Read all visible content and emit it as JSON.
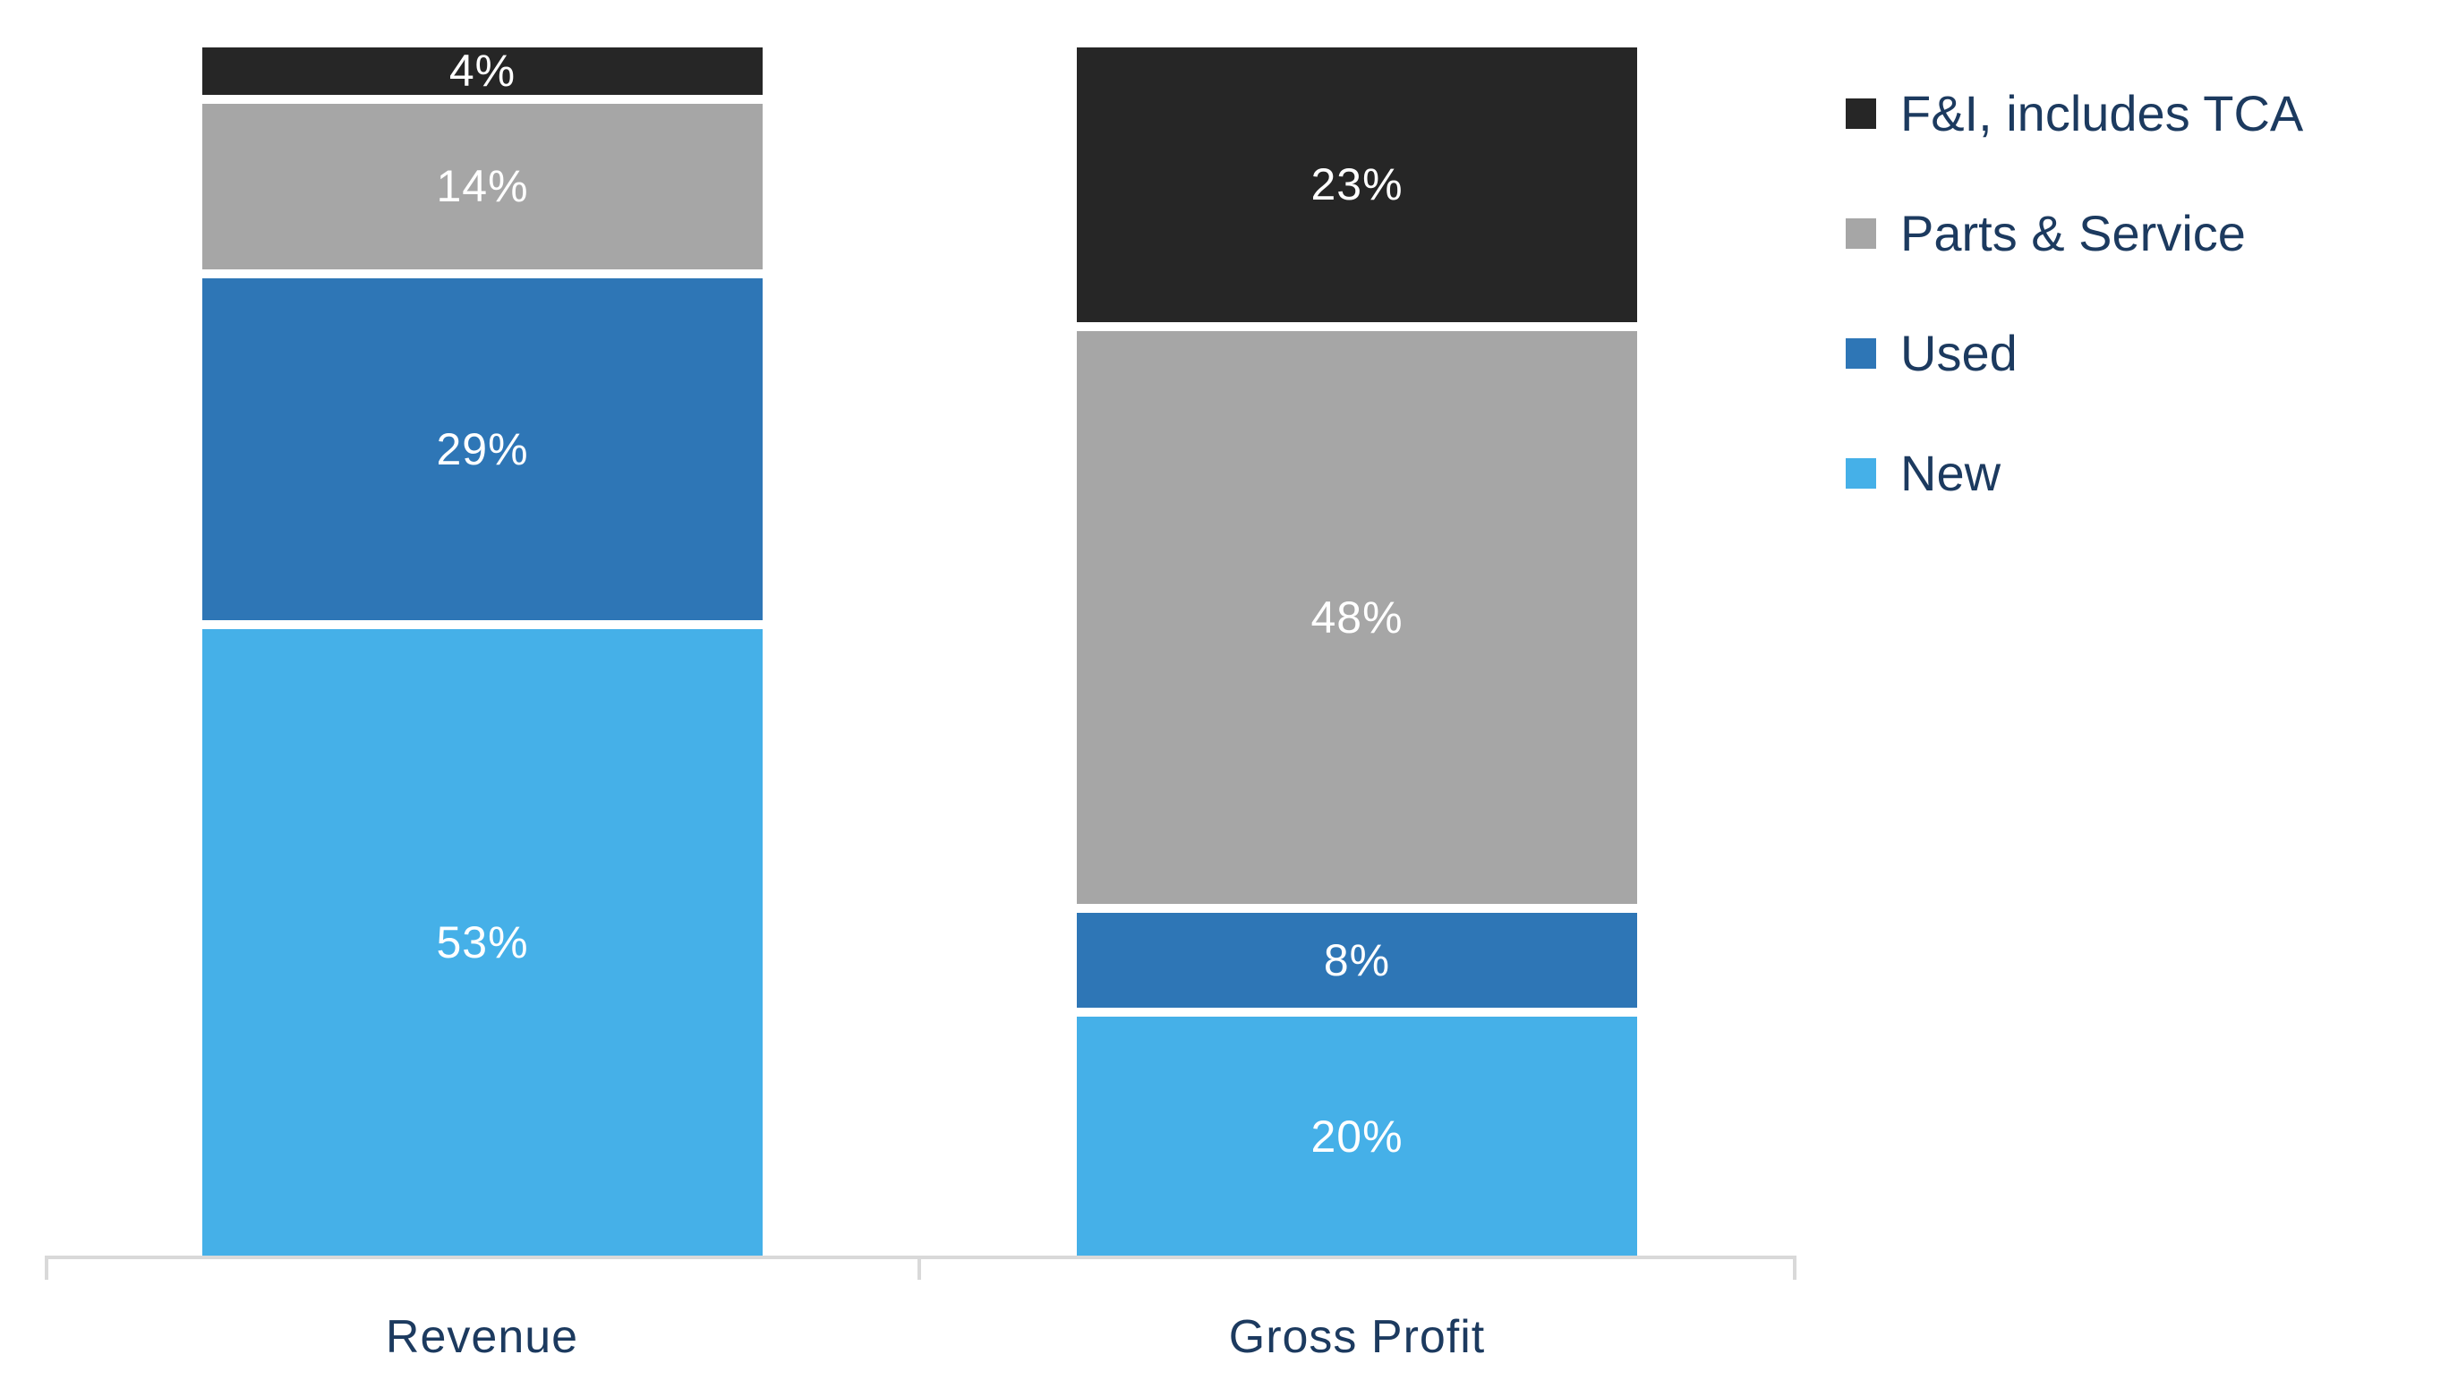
{
  "chart_data": {
    "type": "bar",
    "subtype": "stacked-100-percent",
    "title": "",
    "categories": [
      "Revenue",
      "Gross Profit"
    ],
    "series": [
      {
        "name": "New",
        "color": "#45B0E8",
        "values": [
          53,
          20
        ]
      },
      {
        "name": "Used",
        "color": "#2E76B6",
        "values": [
          29,
          8
        ]
      },
      {
        "name": "Parts & Service",
        "color": "#A6A6A6",
        "values": [
          14,
          48
        ]
      },
      {
        "name": "F&I, includes TCA",
        "color": "#262626",
        "values": [
          4,
          23
        ]
      }
    ],
    "stack_order_bottom_to_top": [
      "New",
      "Used",
      "Parts & Service",
      "F&I, includes TCA"
    ],
    "value_suffix": "%",
    "data_labels": {
      "revenue": [
        "4%",
        "14%",
        "29%",
        "53%"
      ],
      "gross_profit": [
        "23%",
        "48%",
        "8%",
        "20%"
      ]
    },
    "ylim": [
      0,
      100
    ],
    "grid": false,
    "legend": {
      "position": "right",
      "entries": [
        "F&I, includes TCA",
        "Parts & Service",
        "Used",
        "New"
      ]
    },
    "colors": {
      "data_label_color": "#FFFFFF",
      "axis_line_color": "#D9D9D9",
      "text_color": "#1C3A5F",
      "background": "#FFFFFF",
      "segment_gap_color": "#FFFFFF"
    }
  }
}
